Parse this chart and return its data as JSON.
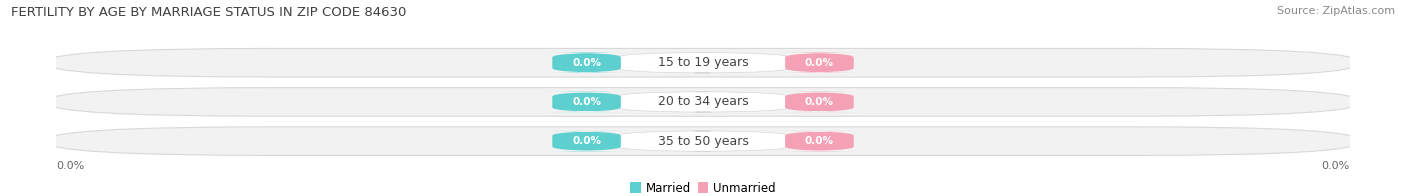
{
  "title": "FERTILITY BY AGE BY MARRIAGE STATUS IN ZIP CODE 84630",
  "source": "Source: ZipAtlas.com",
  "categories": [
    "15 to 19 years",
    "20 to 34 years",
    "35 to 50 years"
  ],
  "married_values": [
    "0.0%",
    "0.0%",
    "0.0%"
  ],
  "unmarried_values": [
    "0.0%",
    "0.0%",
    "0.0%"
  ],
  "married_color": "#5ecfcf",
  "unmarried_color": "#f4a0b5",
  "bar_bg_color": "#f2f2f2",
  "bar_bg_edge": "#d8d8d8",
  "bar_bg_color2": "#e8e8e8",
  "title_fontsize": 9.5,
  "source_fontsize": 8,
  "cat_fontsize": 9,
  "badge_fontsize": 7.5,
  "legend_fontsize": 8.5,
  "axis_label_fontsize": 8,
  "axis_label": "0.0%",
  "figsize": [
    14.06,
    1.96
  ],
  "dpi": 100
}
